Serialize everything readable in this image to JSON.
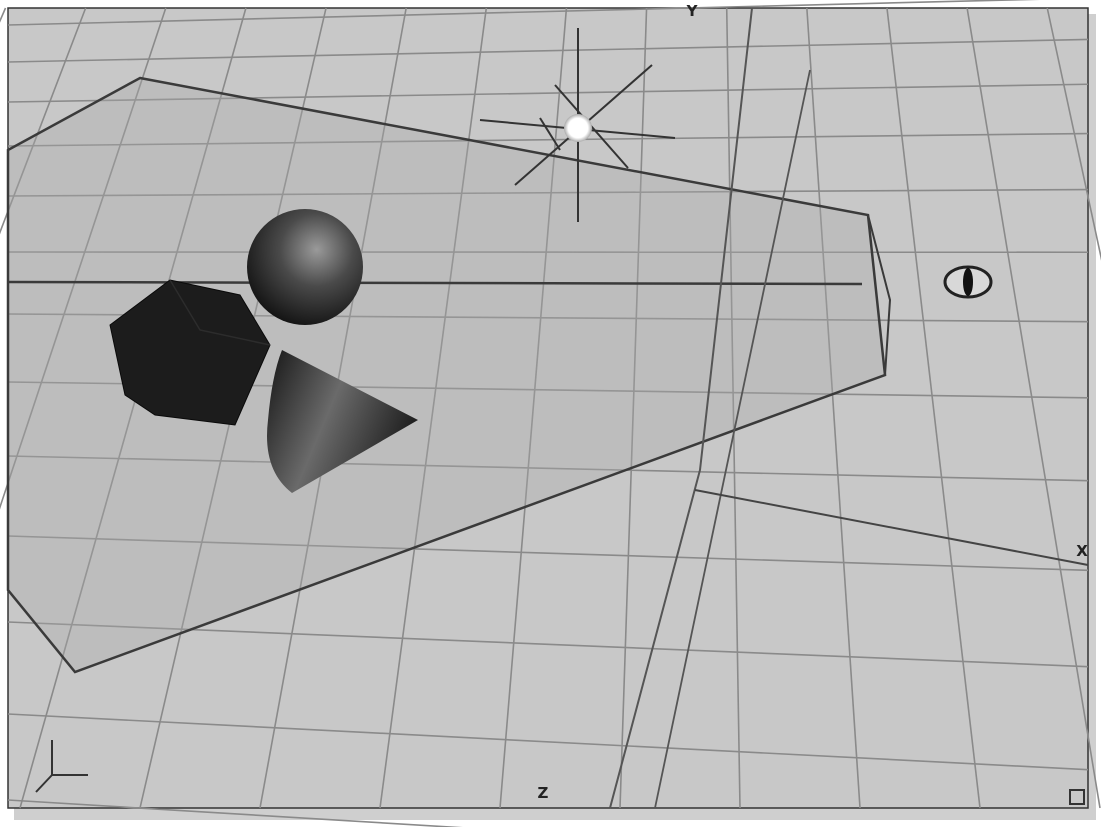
{
  "viewport": {
    "axis_labels": {
      "y": "Y",
      "x": "X",
      "z": "Z"
    }
  }
}
